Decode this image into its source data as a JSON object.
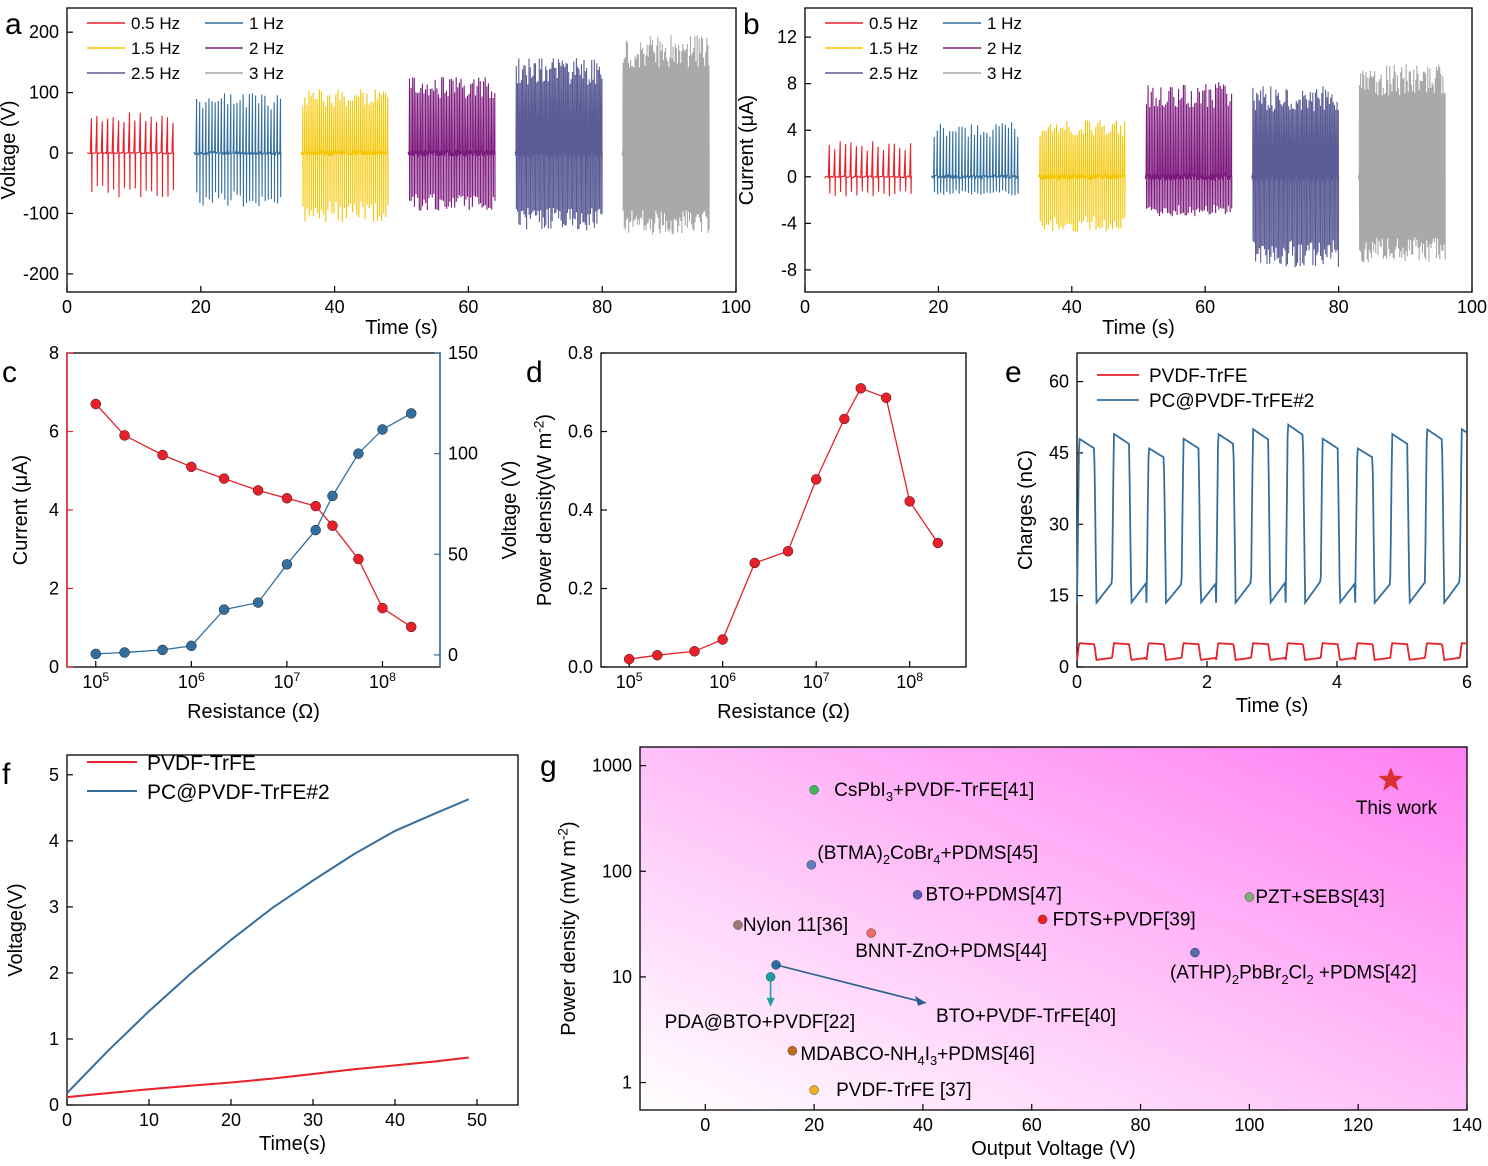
{
  "chart_data": [
    {
      "id": "a",
      "panel_letter": "a",
      "type": "line",
      "xlabel": "Time (s)",
      "ylabel": "Voltage (V)",
      "xlim": [
        0,
        100
      ],
      "ylim": [
        -230,
        240
      ],
      "xticks": [
        0,
        20,
        40,
        60,
        80,
        100
      ],
      "yticks": [
        -200,
        -100,
        0,
        100,
        200
      ],
      "legend_position": "top-left",
      "series": [
        {
          "name": "0.5 Hz",
          "color": "#e8202a",
          "t_start": 3,
          "t_end": 16,
          "freq": 0.5,
          "max_pos": 68,
          "max_neg": -76
        },
        {
          "name": "1 Hz",
          "color": "#336f9e",
          "t_start": 19,
          "t_end": 32,
          "freq": 1,
          "max_pos": 100,
          "max_neg": -90
        },
        {
          "name": "1.5 Hz",
          "color": "#f5c600",
          "t_start": 35,
          "t_end": 48,
          "freq": 1.5,
          "max_pos": 106,
          "max_neg": -115
        },
        {
          "name": "2 Hz",
          "color": "#7d1a7d",
          "t_start": 51,
          "t_end": 64,
          "freq": 2,
          "max_pos": 126,
          "max_neg": -96
        },
        {
          "name": "2.5 Hz",
          "color": "#5b5b96",
          "t_start": 67,
          "t_end": 80,
          "freq": 2.5,
          "max_pos": 157,
          "max_neg": -128
        },
        {
          "name": "3 Hz",
          "color": "#a9a9a9",
          "t_start": 83,
          "t_end": 96,
          "freq": 3,
          "max_pos": 196,
          "max_neg": -135
        }
      ]
    },
    {
      "id": "b",
      "panel_letter": "b",
      "type": "line",
      "xlabel": "Time (s)",
      "ylabel": "Current (μA)",
      "xlim": [
        0,
        100
      ],
      "ylim": [
        -9.9,
        14.5
      ],
      "xticks": [
        0,
        20,
        40,
        60,
        80,
        100
      ],
      "yticks": [
        -8,
        -4,
        0,
        4,
        8,
        12
      ],
      "legend_position": "top-left",
      "series": [
        {
          "name": "0.5 Hz",
          "color": "#e8202a",
          "t_start": 3,
          "t_end": 16,
          "freq": 0.5,
          "max_pos": 3.1,
          "max_neg": -1.7
        },
        {
          "name": "1 Hz",
          "color": "#336f9e",
          "t_start": 19,
          "t_end": 32,
          "freq": 1,
          "max_pos": 4.7,
          "max_neg": -1.6
        },
        {
          "name": "1.5 Hz",
          "color": "#f5c600",
          "t_start": 35,
          "t_end": 48,
          "freq": 1.5,
          "max_pos": 4.9,
          "max_neg": -4.8
        },
        {
          "name": "2 Hz",
          "color": "#7d1a7d",
          "t_start": 51,
          "t_end": 64,
          "freq": 2,
          "max_pos": 8.2,
          "max_neg": -3.4
        },
        {
          "name": "2.5 Hz",
          "color": "#5b5b96",
          "t_start": 67,
          "t_end": 80,
          "freq": 2.5,
          "max_pos": 7.8,
          "max_neg": -7.8
        },
        {
          "name": "3 Hz",
          "color": "#a9a9a9",
          "t_start": 83,
          "t_end": 96,
          "freq": 3,
          "max_pos": 9.7,
          "max_neg": -7.4
        }
      ]
    },
    {
      "id": "c",
      "panel_letter": "c",
      "type": "line",
      "xlabel": "Resistance (Ω)",
      "ylabel": "Current (μA)",
      "ylabel_right": "Voltage (V)",
      "x_scale": "log",
      "xlim": [
        50000,
        400000000
      ],
      "xticks": [
        100000,
        1000000,
        10000000,
        100000000
      ],
      "xtick_labels": [
        "10^5",
        "10^6",
        "10^7",
        "10^8"
      ],
      "ylim": [
        0,
        8
      ],
      "yticks": [
        0,
        2,
        4,
        6,
        8
      ],
      "ylim_right": [
        -6,
        150
      ],
      "yticks_right": [
        0,
        50,
        100,
        150
      ],
      "left_color": "#e8202a",
      "right_color": "#336f9e",
      "x": [
        100000,
        200000,
        500000,
        1000000,
        2200000,
        5000000,
        10000000,
        20000000,
        30000000,
        56000000,
        100000000,
        200000000
      ],
      "series": [
        {
          "name": "Current",
          "axis": "left",
          "color": "#e8202a",
          "values": [
            6.7,
            5.9,
            5.4,
            5.1,
            4.8,
            4.5,
            4.3,
            4.1,
            3.6,
            2.75,
            1.5,
            1.02
          ]
        },
        {
          "name": "Voltage",
          "axis": "right",
          "color": "#336f9e",
          "values": [
            0.5,
            1.2,
            2.5,
            4.5,
            22.5,
            26,
            45,
            62,
            79,
            100,
            112,
            120
          ]
        }
      ]
    },
    {
      "id": "d",
      "panel_letter": "d",
      "type": "line",
      "xlabel": "Resistance (Ω)",
      "ylabel": "Power density(W m^-2)",
      "x_scale": "log",
      "xlim": [
        50000,
        400000000
      ],
      "xticks": [
        100000,
        1000000,
        10000000,
        100000000
      ],
      "xtick_labels": [
        "10^5",
        "10^6",
        "10^7",
        "10^8"
      ],
      "ylim": [
        0,
        0.8
      ],
      "yticks": [
        0.0,
        0.2,
        0.4,
        0.6,
        0.8
      ],
      "ytick_labels": [
        "0.0",
        "0.2",
        "0.4",
        "0.6",
        "0.8"
      ],
      "x": [
        100000,
        200000,
        500000,
        1000000,
        2200000,
        5000000,
        10000000,
        20000000,
        30000000,
        56000000,
        100000000,
        200000000
      ],
      "series": [
        {
          "name": "Power density",
          "color": "#e8202a",
          "values": [
            0.02,
            0.03,
            0.04,
            0.07,
            0.265,
            0.295,
            0.478,
            0.632,
            0.71,
            0.686,
            0.422,
            0.316
          ]
        }
      ]
    },
    {
      "id": "e",
      "panel_letter": "e",
      "type": "line",
      "xlabel": "Time (s)",
      "ylabel": "Charges (nC)",
      "xlim": [
        0,
        6
      ],
      "ylim": [
        0,
        66
      ],
      "xticks": [
        0,
        2,
        4,
        6
      ],
      "yticks": [
        0,
        15,
        30,
        45,
        60
      ],
      "legend_position": "top-left",
      "cycle_period_s": 0.535,
      "series": [
        {
          "name": "PVDF-TrFE",
          "color": "#e8202a",
          "low": 1.5,
          "high": 5.0
        },
        {
          "name": "PC@PVDF-TrFE#2",
          "color": "#336f9e",
          "low": 13.5,
          "high": 50.0,
          "peaks": [
            48,
            49,
            46,
            48,
            49,
            50,
            51,
            48,
            46,
            49,
            50,
            50,
            52,
            47,
            49
          ]
        }
      ]
    },
    {
      "id": "f",
      "panel_letter": "f",
      "type": "line",
      "xlabel": "Time(s)",
      "ylabel": "Voltage(V)",
      "xlim": [
        0,
        55
      ],
      "ylim": [
        0,
        5.3
      ],
      "xticks": [
        0,
        10,
        20,
        30,
        40,
        50
      ],
      "yticks": [
        0,
        1,
        2,
        3,
        4,
        5
      ],
      "legend_position": "top-left",
      "x": [
        0,
        5,
        10,
        15,
        20,
        25,
        30,
        35,
        40,
        45,
        49
      ],
      "series": [
        {
          "name": "PVDF-TrFE",
          "color": "#e8202a",
          "values": [
            0.12,
            0.18,
            0.24,
            0.29,
            0.34,
            0.4,
            0.47,
            0.54,
            0.6,
            0.66,
            0.72
          ]
        },
        {
          "name": "PC@PVDF-TrFE#2",
          "color": "#336f9e",
          "values": [
            0.18,
            0.82,
            1.42,
            1.98,
            2.5,
            2.98,
            3.4,
            3.8,
            4.15,
            4.42,
            4.63
          ]
        }
      ]
    },
    {
      "id": "g",
      "panel_letter": "g",
      "type": "scatter",
      "xlabel": "Output Voltage (V)",
      "ylabel": "Power density (mW m^-2)",
      "xlim": [
        -12,
        140
      ],
      "xticks": [
        0,
        20,
        40,
        60,
        80,
        100,
        120,
        140
      ],
      "y_scale": "log",
      "ylim": [
        0.55,
        1500
      ],
      "yticks": [
        1,
        10,
        100,
        1000
      ],
      "ytick_labels": [
        "1",
        "10",
        "100",
        "1000"
      ],
      "background_gradient": [
        "#ffffff",
        "#ff7ff2"
      ],
      "points": [
        {
          "x": 20,
          "y": 590,
          "label": "CsPbI3+PVDF-TrFE[41]",
          "color": "#3cb85a"
        },
        {
          "x": 19.5,
          "y": 115,
          "label": "(BTMA)2CoBr4+PDMS[45]",
          "color": "#5c7fbf"
        },
        {
          "x": 39,
          "y": 60,
          "label": "BTO+PDMS[47]",
          "color": "#5a5ab8"
        },
        {
          "x": 6,
          "y": 31,
          "label": "Nylon 11[36]",
          "color": "#9a7d70"
        },
        {
          "x": 30.5,
          "y": 26,
          "label": "BNNT-ZnO+PDMS[44]",
          "color": "#f06a6a"
        },
        {
          "x": 62,
          "y": 35,
          "label": "FDTS+PVDF[39]",
          "color": "#ee1f1f"
        },
        {
          "x": 100,
          "y": 57,
          "label": "PZT+SEBS[43]",
          "color": "#7fae7a"
        },
        {
          "x": 90,
          "y": 17,
          "label": "(ATHP)2PbBr2Cl2 +PDMS[42]",
          "color": "#4f6eae"
        },
        {
          "x": 13,
          "y": 13,
          "label": "BTO+PVDF-TrFE[40]",
          "color": "#2a6fa5"
        },
        {
          "x": 12,
          "y": 10,
          "label": "PDA@BTO+PVDF[22]",
          "color": "#1aa0a0"
        },
        {
          "x": 16,
          "y": 2,
          "label": "MDABCO-NH4I3+PDMS[46]",
          "color": "#c06b1a"
        },
        {
          "x": 20,
          "y": 0.85,
          "label": "PVDF-TrFE [37]",
          "color": "#f0b020"
        },
        {
          "x": 126,
          "y": 730,
          "label": "This work",
          "color": "#d93030"
        }
      ]
    }
  ]
}
